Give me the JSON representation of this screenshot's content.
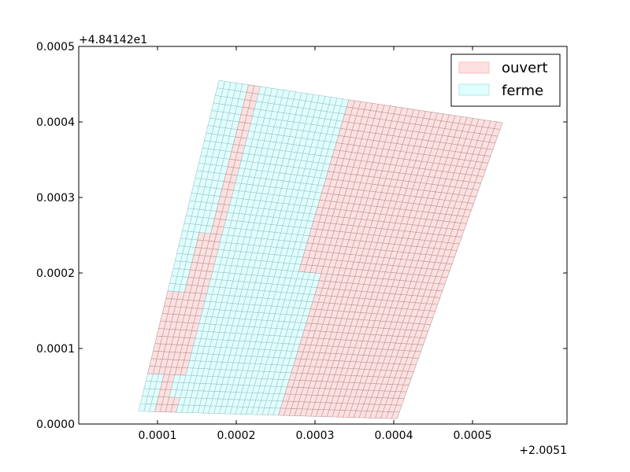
{
  "chart_data": {
    "type": "polygon-grid",
    "x_offset_label": "+2.0051",
    "y_offset_label": "+4.84142e1",
    "xlim": [
      0.0,
      0.00062
    ],
    "ylim": [
      0.0,
      0.0005
    ],
    "x_ticks": [
      0.0001,
      0.0002,
      0.0003,
      0.0004,
      0.0005
    ],
    "x_tick_labels": [
      "0.0001",
      "0.0002",
      "0.0003",
      "0.0004",
      "0.0005"
    ],
    "y_ticks": [
      0.0,
      0.0001,
      0.0002,
      0.0003,
      0.0004,
      0.0005
    ],
    "y_tick_labels": [
      "0.0000",
      "0.0001",
      "0.0002",
      "0.0003",
      "0.0004",
      "0.0005"
    ],
    "grid": false,
    "legend_position": "top-right",
    "legend": [
      {
        "label": "ouvert",
        "color": "#ffe0e0"
      },
      {
        "label": "ferme",
        "color": "#e0ffff"
      }
    ],
    "colors": {
      "ouvert_fill": "#ffe0e0",
      "ouvert_edge": "#b59a9a",
      "ferme_fill": "#e0ffff",
      "ferme_edge": "#9fc3c3"
    },
    "quad_corners": {
      "bottom_left": [
        7.6e-05,
        1.7e-05
      ],
      "bottom_right": [
        0.000404,
        7e-06
      ],
      "top_left": [
        0.000178,
        0.000455
      ],
      "top_right": [
        0.000538,
        0.000399
      ]
    },
    "columns": 48,
    "rows": 44,
    "regions": [
      {
        "status": "ferme",
        "col_start": 0,
        "col_end": 3,
        "row_start": 0,
        "row_end": 5
      },
      {
        "status": "ouvert",
        "col_start": 0,
        "col_end": 3,
        "row_start": 5,
        "row_end": 16
      },
      {
        "status": "ferme",
        "col_start": 0,
        "col_end": 3,
        "row_start": 16,
        "row_end": 44
      },
      {
        "status": "ouvert",
        "col_start": 3,
        "col_end": 5,
        "row_start": 0,
        "row_end": 24
      },
      {
        "status": "ferme",
        "col_start": 3,
        "col_end": 5,
        "row_start": 24,
        "row_end": 44
      },
      {
        "status": "ouvert",
        "col_start": 5,
        "col_end": 7,
        "row_start": 0,
        "row_end": 2
      },
      {
        "status": "ferme",
        "col_start": 5,
        "col_end": 7,
        "row_start": 2,
        "row_end": 5
      },
      {
        "status": "ouvert",
        "col_start": 5,
        "col_end": 7,
        "row_start": 5,
        "row_end": 44
      },
      {
        "status": "ferme",
        "col_start": 7,
        "col_end": 22,
        "row_start": 0,
        "row_end": 44
      },
      {
        "status": "ferme",
        "col_start": 22,
        "col_end": 26,
        "row_start": 0,
        "row_end": 20
      },
      {
        "status": "ouvert",
        "col_start": 22,
        "col_end": 26,
        "row_start": 20,
        "row_end": 44
      },
      {
        "status": "ouvert",
        "col_start": 26,
        "col_end": 48,
        "row_start": 0,
        "row_end": 44
      }
    ]
  }
}
